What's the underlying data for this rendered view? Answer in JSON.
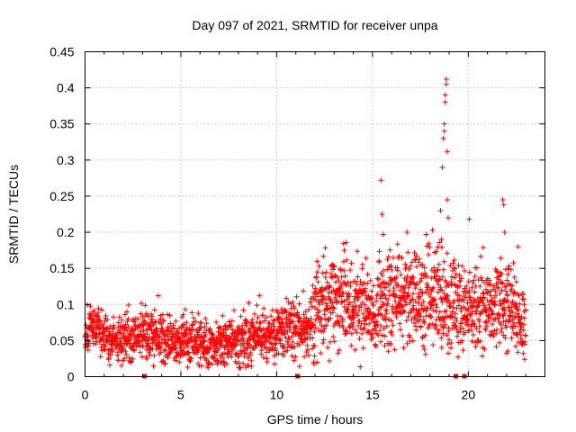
{
  "chart_data": {
    "type": "scatter",
    "title": "Day 097 of 2021, SRMTID for receiver unpa",
    "xlabel": "GPS time / hours",
    "ylabel": "SRMTID / TECUs",
    "xlim": [
      0,
      24
    ],
    "ylim": [
      0,
      0.45
    ],
    "xticks": [
      0,
      5,
      10,
      15,
      20
    ],
    "xtick_labels": [
      "0",
      "5",
      "10",
      "15",
      "20"
    ],
    "yticks": [
      0,
      0.05,
      0.1,
      0.15,
      0.2,
      0.25,
      0.3,
      0.35,
      0.4,
      0.45
    ],
    "ytick_labels": [
      "0",
      "0.05",
      "0.1",
      "0.15",
      "0.2",
      "0.25",
      "0.3",
      "0.35",
      "0.4",
      "0.45"
    ],
    "grid": true,
    "series_color": "#ff0000",
    "marker": "plus",
    "trend": [
      {
        "x": 0.0,
        "y": 0.05
      },
      {
        "x": 0.3,
        "y": 0.075
      },
      {
        "x": 1.0,
        "y": 0.055
      },
      {
        "x": 2.0,
        "y": 0.055
      },
      {
        "x": 3.0,
        "y": 0.06
      },
      {
        "x": 4.0,
        "y": 0.055
      },
      {
        "x": 5.0,
        "y": 0.05
      },
      {
        "x": 6.0,
        "y": 0.045
      },
      {
        "x": 7.0,
        "y": 0.045
      },
      {
        "x": 8.0,
        "y": 0.05
      },
      {
        "x": 9.0,
        "y": 0.055
      },
      {
        "x": 10.0,
        "y": 0.06
      },
      {
        "x": 11.0,
        "y": 0.07
      },
      {
        "x": 11.5,
        "y": 0.06
      },
      {
        "x": 12.0,
        "y": 0.09
      },
      {
        "x": 13.0,
        "y": 0.11
      },
      {
        "x": 14.0,
        "y": 0.1
      },
      {
        "x": 15.0,
        "y": 0.09
      },
      {
        "x": 16.0,
        "y": 0.11
      },
      {
        "x": 17.0,
        "y": 0.11
      },
      {
        "x": 18.0,
        "y": 0.105
      },
      {
        "x": 19.0,
        "y": 0.11
      },
      {
        "x": 20.0,
        "y": 0.09
      },
      {
        "x": 21.0,
        "y": 0.1
      },
      {
        "x": 22.0,
        "y": 0.1
      },
      {
        "x": 23.0,
        "y": 0.07
      }
    ],
    "spread": [
      {
        "x": 0.0,
        "s": 0.015
      },
      {
        "x": 5.0,
        "s": 0.017
      },
      {
        "x": 10.0,
        "s": 0.018
      },
      {
        "x": 11.5,
        "s": 0.02
      },
      {
        "x": 12.0,
        "s": 0.03
      },
      {
        "x": 14.0,
        "s": 0.03
      },
      {
        "x": 15.0,
        "s": 0.035
      },
      {
        "x": 18.0,
        "s": 0.035
      },
      {
        "x": 20.0,
        "s": 0.03
      },
      {
        "x": 23.0,
        "s": 0.03
      }
    ],
    "peaks": [
      {
        "x": 15.45,
        "y": 0.272
      },
      {
        "x": 15.5,
        "y": 0.225
      },
      {
        "x": 15.55,
        "y": 0.197
      },
      {
        "x": 16.8,
        "y": 0.2
      },
      {
        "x": 18.55,
        "y": 0.23
      },
      {
        "x": 18.6,
        "y": 0.19
      },
      {
        "x": 18.65,
        "y": 0.29
      },
      {
        "x": 18.7,
        "y": 0.33
      },
      {
        "x": 18.75,
        "y": 0.35
      },
      {
        "x": 18.75,
        "y": 0.34
      },
      {
        "x": 18.8,
        "y": 0.39
      },
      {
        "x": 18.8,
        "y": 0.38
      },
      {
        "x": 18.85,
        "y": 0.412
      },
      {
        "x": 18.85,
        "y": 0.405
      },
      {
        "x": 18.9,
        "y": 0.312
      },
      {
        "x": 18.9,
        "y": 0.245
      },
      {
        "x": 18.95,
        "y": 0.22
      },
      {
        "x": 20.05,
        "y": 0.218
      },
      {
        "x": 21.8,
        "y": 0.245
      },
      {
        "x": 21.85,
        "y": 0.238
      },
      {
        "x": 21.9,
        "y": 0.2
      },
      {
        "x": 22.6,
        "y": 0.18
      }
    ],
    "sample_step_hours": 0.01,
    "gap_markers_x": [
      3.1,
      11.1,
      19.35,
      19.8
    ]
  }
}
